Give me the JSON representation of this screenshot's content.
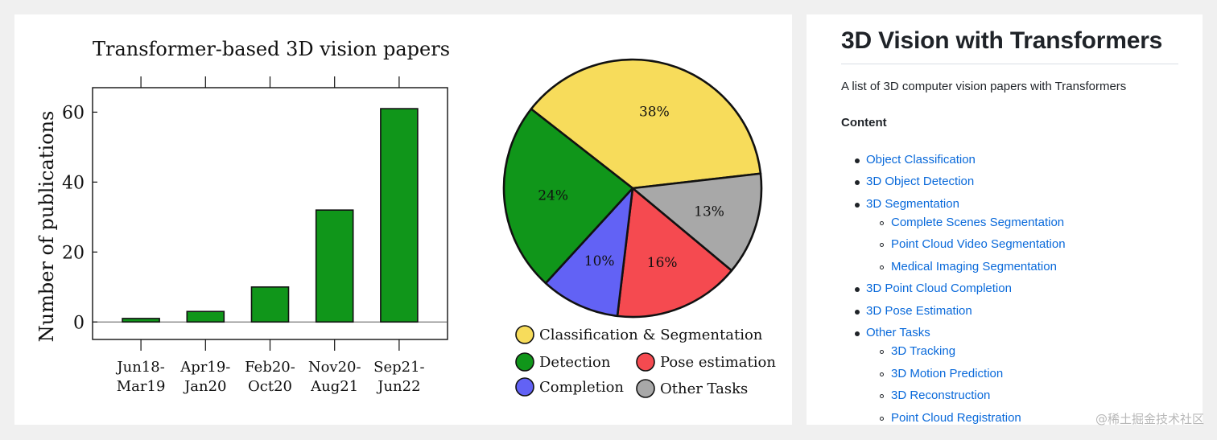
{
  "figure": {
    "bar_title": "Transformer-based 3D vision papers",
    "pie_legend": [
      {
        "label": "Classification & Segmentation",
        "color": "#f7dc5b"
      },
      {
        "label": "Detection",
        "color": "#10961a"
      },
      {
        "label": "Pose estimation",
        "color": "#f54a50"
      },
      {
        "label": "Completion",
        "color": "#6262f5"
      },
      {
        "label": "Other Tasks",
        "color": "#a8a8a8"
      }
    ]
  },
  "chart_data": [
    {
      "type": "bar",
      "title": "Transformer-based 3D vision papers",
      "xlabel": "",
      "ylabel": "Number of publications",
      "categories": [
        "Jun18-Mar19",
        "Apr19-Jan20",
        "Feb20-Oct20",
        "Nov20-Aug21",
        "Sep21-Jun22"
      ],
      "category_lines": [
        [
          "Jun18-",
          "Mar19"
        ],
        [
          "Apr19-",
          "Jan20"
        ],
        [
          "Feb20-",
          "Oct20"
        ],
        [
          "Nov20-",
          "Aug21"
        ],
        [
          "Sep21-",
          "Jun22"
        ]
      ],
      "values": [
        1,
        3,
        10,
        32,
        61
      ],
      "ylim": [
        -5,
        67
      ],
      "yticks": [
        0,
        20,
        40,
        60
      ],
      "bar_color": "#10961a",
      "grid": false
    },
    {
      "type": "pie",
      "slices": [
        {
          "label": "Classification & Segmentation",
          "value": 38,
          "text": "38%",
          "color": "#f7dc5b"
        },
        {
          "label": "Other Tasks",
          "value": 13,
          "text": "13%",
          "color": "#a8a8a8"
        },
        {
          "label": "Pose estimation",
          "value": 16,
          "text": "16%",
          "color": "#f54a50"
        },
        {
          "label": "Completion",
          "value": 10,
          "text": "10%",
          "color": "#6262f5"
        },
        {
          "label": "Detection",
          "value": 24,
          "text": "24%",
          "color": "#10961a"
        }
      ],
      "legend_placement": "bottom"
    }
  ],
  "readme": {
    "title": "3D Vision with Transformers",
    "description": "A list of 3D computer vision papers with Transformers",
    "content_heading": "Content",
    "toc": [
      {
        "label": "Object Classification",
        "level": 1
      },
      {
        "label": "3D Object Detection",
        "level": 1
      },
      {
        "label": "3D Segmentation",
        "level": 1
      },
      {
        "label": "Complete Scenes Segmentation",
        "level": 2
      },
      {
        "label": "Point Cloud Video Segmentation",
        "level": 2
      },
      {
        "label": "Medical Imaging Segmentation",
        "level": 2
      },
      {
        "label": "3D Point Cloud Completion",
        "level": 1
      },
      {
        "label": "3D Pose Estimation",
        "level": 1
      },
      {
        "label": "Other Tasks",
        "level": 1
      },
      {
        "label": "3D Tracking",
        "level": 2
      },
      {
        "label": "3D Motion Prediction",
        "level": 2
      },
      {
        "label": "3D Reconstruction",
        "level": 2
      },
      {
        "label": "Point Cloud Registration",
        "level": 2
      }
    ]
  },
  "watermark": "@稀土掘金技术社区",
  "colors": {
    "link": "#0969da",
    "text": "#1f2328"
  }
}
